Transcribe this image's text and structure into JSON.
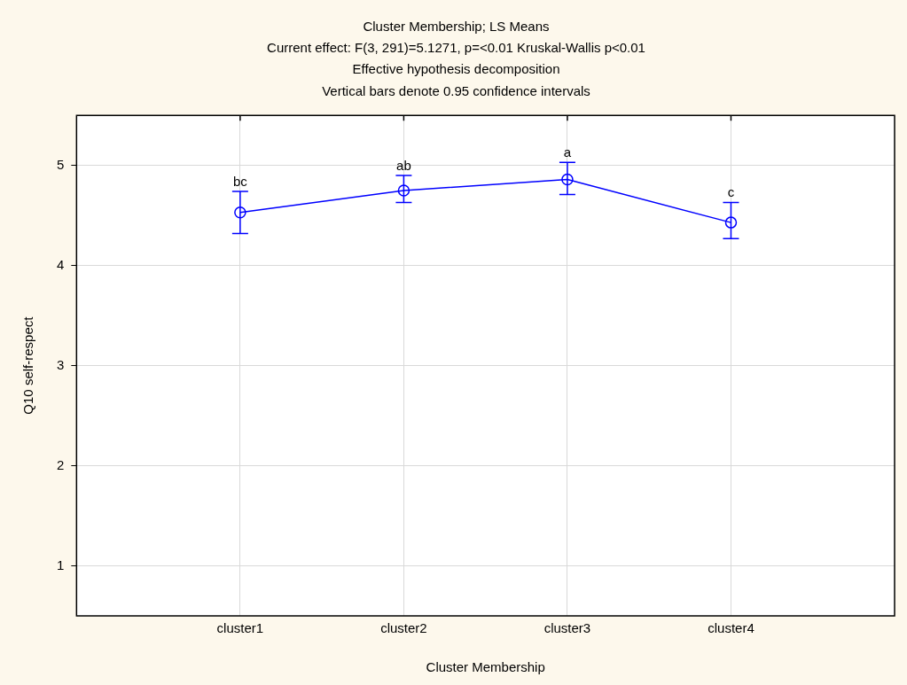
{
  "chart_data": {
    "type": "line",
    "title": "Cluster Membership; LS Means",
    "subtitle": "Current effect: F(3, 291)=5.1271, p=<0.01 Kruskal-Wallis p<0.01\nEffective hypothesis decomposition\nVertical bars denote 0.95 confidence intervals",
    "xlabel": "Cluster Membership",
    "ylabel": "Q10 self-respect",
    "categories": [
      "cluster1",
      "cluster2",
      "cluster3",
      "cluster4"
    ],
    "series": [
      {
        "color": "#0000ff",
        "values": [
          4.53,
          4.75,
          4.86,
          4.43
        ],
        "errors": [
          [
            4.32,
            4.74
          ],
          [
            4.63,
            4.9
          ],
          [
            4.71,
            5.03
          ],
          [
            4.27,
            4.63
          ]
        ]
      }
    ],
    "ylim": [
      0.5,
      5.5
    ],
    "yticks": [
      1,
      2,
      3,
      4,
      5
    ],
    "grid": true,
    "legend": false,
    "marker": "circle",
    "line_style": "solid",
    "annotations": [
      {
        "text": "bc",
        "x": "cluster1",
        "y": 4.74
      },
      {
        "text": "ab",
        "x": "cluster2",
        "y": 4.9
      },
      {
        "text": "a",
        "x": "cluster3",
        "y": 5.03
      },
      {
        "text": "c",
        "x": "cluster4",
        "y": 4.63
      }
    ]
  }
}
